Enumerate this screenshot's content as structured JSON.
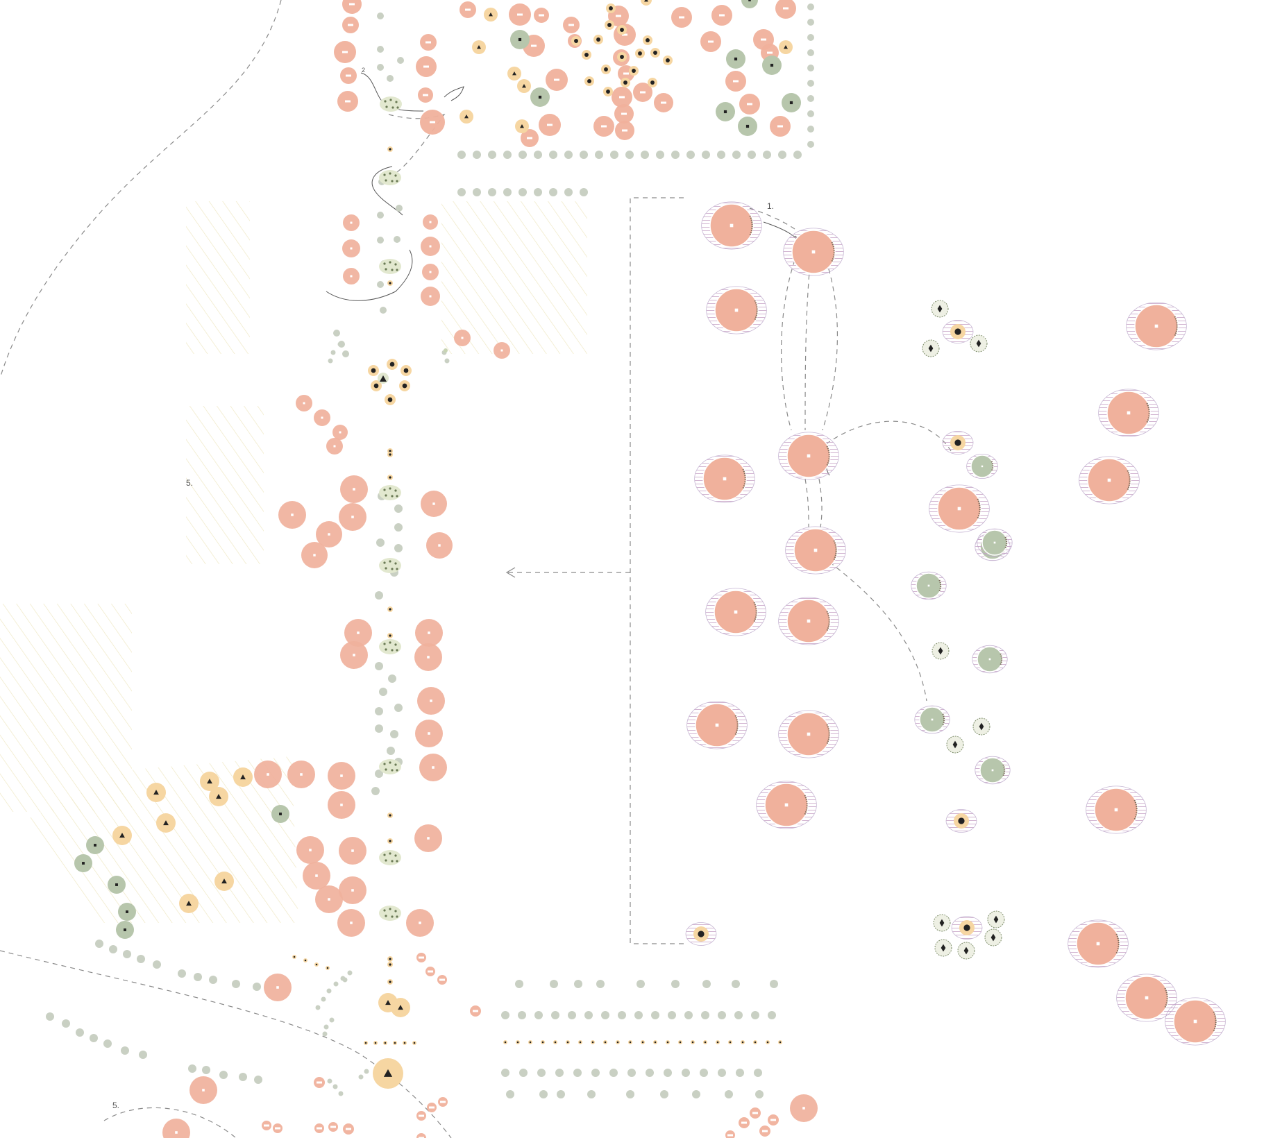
{
  "annotations": {
    "area_one": "1.",
    "note_two": "2",
    "zone_five_upper": "5.",
    "zone_five_lower": "5."
  },
  "legend_symbols": {
    "salmon_circle": "square-marker-icon",
    "sand_circle": "triangle-marker-icon",
    "sage_circle": "square-marker-icon",
    "small_orange": "dot-marker-icon",
    "sage_ringed": "diamond-marker-icon"
  },
  "colors": {
    "salmon": "#f0b19c",
    "salmon_dark": "#e88d70",
    "sand": "#f6d6a2",
    "sage": "#b7c6ac",
    "grey_dot": "#c9d0c3",
    "hatch": "#efe9c7",
    "halo": "#b9a4c9",
    "halo_red": "#eaa9a0",
    "line": "#888888",
    "marker": "#222222"
  }
}
